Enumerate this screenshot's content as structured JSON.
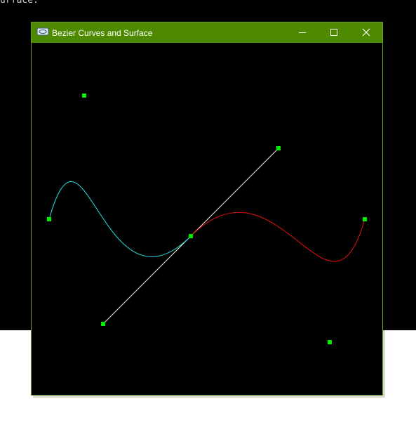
{
  "console": {
    "text": "urface."
  },
  "window": {
    "title": "Bezier Curves and Surface"
  }
}
